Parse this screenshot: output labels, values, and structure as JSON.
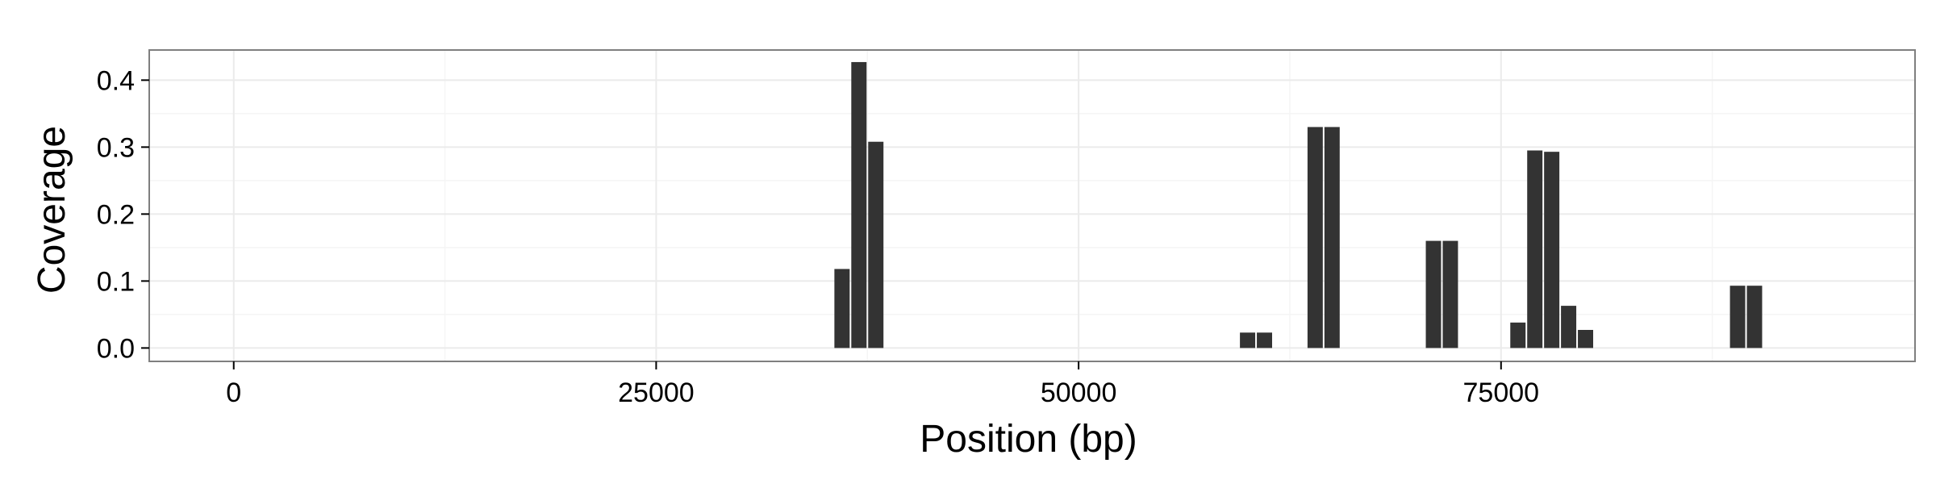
{
  "chart_data": {
    "type": "bar",
    "title": "",
    "xlabel": "Position (bp)",
    "ylabel": "Coverage",
    "xlim": [
      -5000,
      99500
    ],
    "ylim": [
      -0.02,
      0.445
    ],
    "xticks": [
      0,
      25000,
      50000,
      75000
    ],
    "xtick_labels": [
      "0",
      "25000",
      "50000",
      "75000"
    ],
    "yticks": [
      0.0,
      0.1,
      0.2,
      0.3,
      0.4
    ],
    "ytick_labels": [
      "0.0",
      "0.1",
      "0.2",
      "0.3",
      "0.4"
    ],
    "grid": true,
    "bin_width": 1000,
    "bar_color": "#333333",
    "panel_border_color": "#7f7f7f",
    "grid_major_color": "#ebebeb",
    "grid_minor_color": "#f5f5f5",
    "x": [
      36000,
      37000,
      38000,
      60000,
      61000,
      64000,
      65000,
      71000,
      72000,
      76000,
      77000,
      78000,
      79000,
      80000,
      89000,
      90000
    ],
    "values": [
      0.118,
      0.427,
      0.308,
      0.023,
      0.023,
      0.33,
      0.33,
      0.16,
      0.16,
      0.038,
      0.295,
      0.293,
      0.063,
      0.027,
      0.093,
      0.093
    ]
  }
}
